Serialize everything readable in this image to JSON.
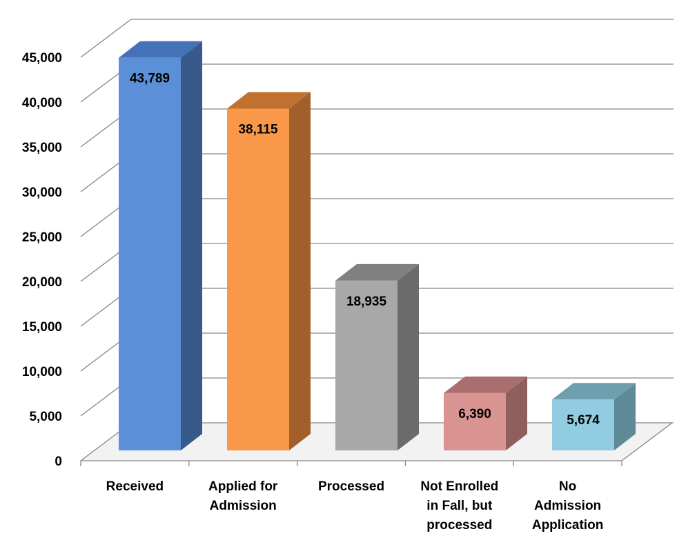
{
  "chart_data": {
    "type": "bar",
    "title": "",
    "xlabel": "",
    "ylabel": "",
    "ylim": [
      0,
      45000
    ],
    "ytick_step": 5000,
    "ytick_labels": [
      "0",
      "5,000",
      "10,000",
      "15,000",
      "20,000",
      "25,000",
      "30,000",
      "35,000",
      "40,000",
      "45,000"
    ],
    "grid": true,
    "legend": "none",
    "three_d": true,
    "categories": [
      [
        "Received"
      ],
      [
        "Applied for",
        "Admission"
      ],
      [
        "Processed"
      ],
      [
        "Not Enrolled",
        "in Fall, but",
        "processed"
      ],
      [
        "No",
        "Admission",
        "Application"
      ]
    ],
    "values": [
      43789,
      38115,
      18935,
      6390,
      5674
    ],
    "data_labels": [
      "43,789",
      "38,115",
      "18,935",
      "6,390",
      "5,674"
    ],
    "colors": [
      {
        "front": "#5b8fd8",
        "side": "#37598b",
        "top": "#4571b8"
      },
      {
        "front": "#f89848",
        "side": "#a25e2b",
        "top": "#c0702f"
      },
      {
        "front": "#a8a8a8",
        "side": "#6b6b6b",
        "top": "#808080"
      },
      {
        "front": "#d99492",
        "side": "#8f5f5e",
        "top": "#a96f6e"
      },
      {
        "front": "#91cce0",
        "side": "#5f8a97",
        "top": "#6e9fae"
      }
    ],
    "floor_color": "#f2f2f2",
    "grid_color": "#868686"
  }
}
